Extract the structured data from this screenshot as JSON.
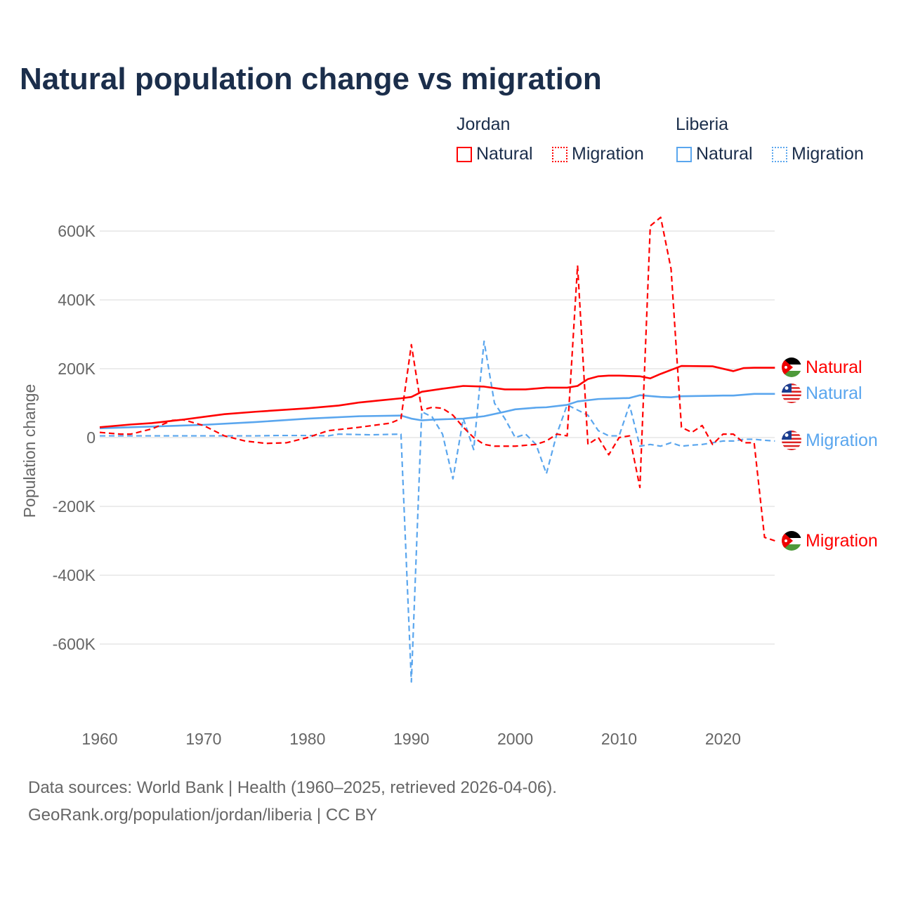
{
  "chart_data": {
    "type": "line",
    "title": "Natural population change vs migration",
    "ylabel": "Population change",
    "xlabel": "",
    "xlim": [
      1960,
      2025
    ],
    "ylim": [
      -750,
      650
    ],
    "y_unit": "thousands",
    "yticks": [
      -600,
      -400,
      -200,
      0,
      200,
      400,
      600
    ],
    "ytick_labels": [
      "-600K",
      "-400K",
      "-200K",
      "0",
      "200K",
      "400K",
      "600K"
    ],
    "xticks": [
      1960,
      1970,
      1980,
      1990,
      2000,
      2010,
      2020
    ],
    "xtick_labels": [
      "1960",
      "1970",
      "1980",
      "1990",
      "2000",
      "2010",
      "2020"
    ],
    "grid": true,
    "legend": {
      "placement": "top-right",
      "groups": [
        {
          "name": "Jordan",
          "items": [
            "Natural",
            "Migration"
          ]
        },
        {
          "name": "Liberia",
          "items": [
            "Natural",
            "Migration"
          ]
        }
      ]
    },
    "series": [
      {
        "name": "Jordan Natural",
        "group": "Jordan",
        "label": "Natural",
        "color": "#ff0000",
        "dash": false,
        "x": [
          1960,
          1963,
          1965,
          1968,
          1970,
          1972,
          1975,
          1980,
          1983,
          1985,
          1987,
          1989,
          1990,
          1991,
          1993,
          1995,
          1997,
          1999,
          2001,
          2003,
          2005,
          2006,
          2007,
          2008,
          2009,
          2010,
          2012,
          2013,
          2014,
          2016,
          2019,
          2021,
          2022,
          2023,
          2025
        ],
        "y": [
          30,
          38,
          42,
          52,
          60,
          68,
          75,
          85,
          93,
          102,
          108,
          114,
          118,
          133,
          142,
          150,
          148,
          140,
          140,
          145,
          145,
          150,
          170,
          178,
          180,
          180,
          178,
          172,
          185,
          208,
          207,
          193,
          202,
          203,
          203
        ]
      },
      {
        "name": "Jordan Migration",
        "group": "Jordan",
        "label": "Migration",
        "color": "#ff0000",
        "dash": true,
        "x": [
          1960,
          1962,
          1963,
          1965,
          1967,
          1968,
          1970,
          1972,
          1974,
          1976,
          1978,
          1980,
          1982,
          1985,
          1987,
          1988,
          1989,
          1990,
          1991,
          1992,
          1993,
          1994,
          1995,
          1996,
          1997,
          1998,
          2000,
          2002,
          2003,
          2004,
          2005,
          2006,
          2007,
          2008,
          2009,
          2010,
          2011,
          2012,
          2013,
          2014,
          2015,
          2016,
          2017,
          2018,
          2019,
          2020,
          2021,
          2022,
          2023,
          2024,
          2025
        ],
        "y": [
          15,
          10,
          10,
          25,
          50,
          52,
          35,
          5,
          -10,
          -17,
          -15,
          0,
          20,
          30,
          38,
          42,
          55,
          270,
          80,
          88,
          85,
          65,
          30,
          0,
          -20,
          -25,
          -25,
          -20,
          -10,
          10,
          5,
          500,
          -20,
          0,
          -50,
          0,
          5,
          -145,
          615,
          640,
          490,
          30,
          15,
          35,
          -20,
          10,
          10,
          -15,
          -15,
          -290,
          -300
        ]
      },
      {
        "name": "Liberia Natural",
        "group": "Liberia",
        "label": "Natural",
        "color": "#5aa6ee",
        "dash": false,
        "x": [
          1960,
          1965,
          1970,
          1975,
          1980,
          1985,
          1989,
          1990,
          1991,
          1992,
          1995,
          1997,
          1999,
          2000,
          2002,
          2003,
          2005,
          2006,
          2008,
          2011,
          2012,
          2014,
          2015,
          2016,
          2020,
          2021,
          2023,
          2025
        ],
        "y": [
          27,
          32,
          37,
          45,
          55,
          62,
          64,
          55,
          50,
          52,
          55,
          62,
          75,
          82,
          87,
          88,
          95,
          105,
          112,
          115,
          123,
          118,
          117,
          120,
          122,
          122,
          127,
          127
        ]
      },
      {
        "name": "Liberia Migration",
        "group": "Liberia",
        "label": "Migration",
        "color": "#5aa6ee",
        "dash": true,
        "x": [
          1960,
          1965,
          1970,
          1975,
          1977,
          1980,
          1982,
          1983,
          1986,
          1989,
          1990,
          1991,
          1992,
          1993,
          1994,
          1995,
          1996,
          1997,
          1998,
          1999,
          2000,
          2001,
          2002,
          2003,
          2004,
          2005,
          2006,
          2007,
          2008,
          2009,
          2010,
          2011,
          2012,
          2013,
          2014,
          2015,
          2016,
          2017,
          2018,
          2019,
          2020,
          2021,
          2022,
          2023,
          2024,
          2025
        ],
        "y": [
          5,
          5,
          5,
          5,
          6,
          6,
          5,
          10,
          8,
          10,
          -710,
          75,
          60,
          10,
          -120,
          55,
          -35,
          280,
          100,
          55,
          0,
          10,
          -20,
          -105,
          10,
          95,
          80,
          65,
          20,
          5,
          5,
          95,
          -25,
          -20,
          -25,
          -15,
          -25,
          -22,
          -20,
          -15,
          -10,
          -10,
          -5,
          -5,
          -8,
          -10
        ]
      }
    ],
    "end_labels": [
      {
        "text": "Natural",
        "series": 0,
        "flag": "jordan"
      },
      {
        "text": "Natural",
        "series": 2,
        "flag": "liberia"
      },
      {
        "text": "Migration",
        "series": 3,
        "flag": "liberia"
      },
      {
        "text": "Migration",
        "series": 1,
        "flag": "jordan"
      }
    ]
  },
  "legend": {
    "jordan": "Jordan",
    "liberia": "Liberia",
    "natural": "Natural",
    "migration": "Migration"
  },
  "footer": {
    "line1": "Data sources: World Bank | Health (1960–2025, retrieved 2026-04-06).",
    "line2": "GeoRank.org/population/jordan/liberia | CC BY"
  }
}
